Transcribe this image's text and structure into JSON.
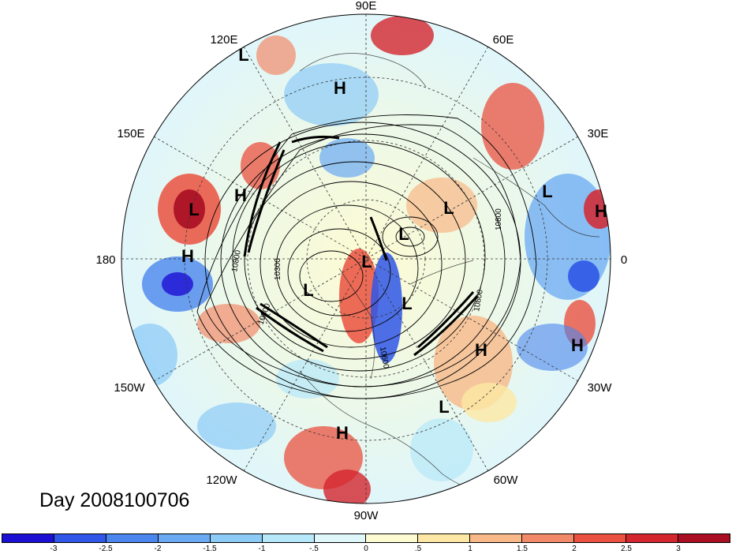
{
  "title": "Day 2008100706",
  "map": {
    "projection": "north-polar-stereographic",
    "longitude_labels": [
      "90E",
      "60E",
      "30E",
      "0",
      "30W",
      "60W",
      "90W",
      "120W",
      "150W",
      "180",
      "150E",
      "120E"
    ],
    "contour_labels": [
      "10800",
      "10800",
      "10300",
      "10800",
      "10800",
      "10600"
    ],
    "high_low_markers": [
      {
        "type": "L"
      },
      {
        "type": "H"
      },
      {
        "type": "L"
      },
      {
        "type": "H"
      },
      {
        "type": "L"
      },
      {
        "type": "H"
      },
      {
        "type": "L"
      },
      {
        "type": "L"
      },
      {
        "type": "H"
      },
      {
        "type": "L"
      },
      {
        "type": "L"
      },
      {
        "type": "L"
      },
      {
        "type": "H"
      },
      {
        "type": "H"
      },
      {
        "type": "L"
      },
      {
        "type": "H"
      }
    ]
  },
  "colorbar": {
    "ticks": [
      "-3",
      "-2.5",
      "-2",
      "-1.5",
      "-1",
      "-.5",
      "0",
      ".5",
      "1",
      "1.5",
      "2",
      "2.5",
      "3"
    ],
    "colors": [
      "#1c0fd4",
      "#2f56e6",
      "#4a86ee",
      "#6aaaf3",
      "#8dcbf7",
      "#b6e8f9",
      "#dff6fb",
      "#fdfbd2",
      "#fde7a4",
      "#f8b888",
      "#f28a6a",
      "#ea5140",
      "#d3262e",
      "#a90e22"
    ]
  }
}
